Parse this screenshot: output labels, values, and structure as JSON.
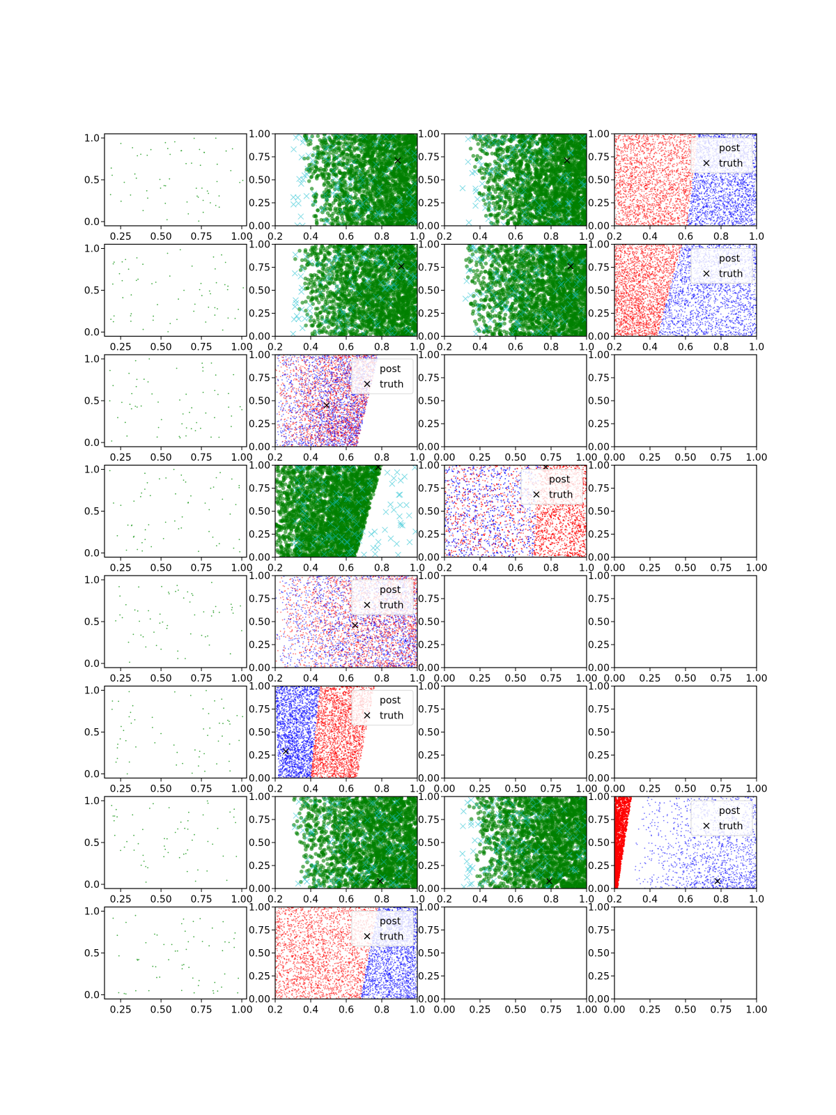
{
  "figure": {
    "rows": 8,
    "cols": 4
  },
  "colors": {
    "uniform": "#2ca02c",
    "samples": "#008000",
    "truth_samples": "#17becf",
    "post_a": "#ff0000",
    "post_b": "#0000ff",
    "truth_marker": "#000000"
  },
  "legend_labels": {
    "post": "post",
    "truth": "truth"
  },
  "chart_data": [
    {
      "row": 0,
      "col": 0,
      "type": "scatter",
      "kind": "uniform",
      "xticks": [
        "0.25",
        "0.50",
        "0.75",
        "1.00"
      ],
      "yticks": [
        "0.0",
        "0.5",
        "1.0"
      ],
      "xlim": [
        0.15,
        1.03
      ],
      "ylim": [
        -0.05,
        1.05
      ],
      "n_points": 60
    },
    {
      "row": 0,
      "col": 1,
      "type": "scatter",
      "kind": "samples",
      "xticks": [
        "0.2",
        "0.4",
        "0.6",
        "0.8",
        "1.0"
      ],
      "yticks": [
        "0.00",
        "0.25",
        "0.50",
        "0.75",
        "1.00"
      ],
      "xlim": [
        0.2,
        1.0
      ],
      "ylim": [
        0,
        1
      ],
      "truth": [
        0.89,
        0.71
      ],
      "n_points": 2600,
      "region": {
        "lo": 0.33,
        "hi": 1.0,
        "skew": 0.08
      }
    },
    {
      "row": 0,
      "col": 2,
      "type": "scatter",
      "kind": "samples",
      "xticks": [
        "0.2",
        "0.4",
        "0.6",
        "0.8",
        "1.0"
      ],
      "yticks": [
        "0.00",
        "0.25",
        "0.50",
        "0.75",
        "1.00"
      ],
      "xlim": [
        0.2,
        1.0
      ],
      "ylim": [
        0,
        1
      ],
      "truth": [
        0.89,
        0.71
      ],
      "n_points": 2600,
      "region": {
        "lo": 0.33,
        "hi": 1.0,
        "skew": 0.08
      }
    },
    {
      "row": 0,
      "col": 3,
      "type": "scatter",
      "kind": "post",
      "xticks": [
        "0.2",
        "0.4",
        "0.6",
        "0.8",
        "1.0"
      ],
      "yticks": [
        "0.00",
        "0.25",
        "0.50",
        "0.75",
        "1.00"
      ],
      "xlim": [
        0.2,
        1.0
      ],
      "ylim": [
        0,
        1
      ],
      "legend": true,
      "split": {
        "x0": 0.61,
        "x1": 0.67
      },
      "left": "post_a",
      "right": "post_b",
      "n_points": 4500
    },
    {
      "row": 1,
      "col": 0,
      "type": "scatter",
      "kind": "uniform",
      "xticks": [
        "0.25",
        "0.50",
        "0.75",
        "1.00"
      ],
      "yticks": [
        "0.0",
        "0.5",
        "1.0"
      ],
      "xlim": [
        0.15,
        1.03
      ],
      "ylim": [
        -0.05,
        1.05
      ],
      "n_points": 60
    },
    {
      "row": 1,
      "col": 1,
      "type": "scatter",
      "kind": "samples",
      "xticks": [
        "0.2",
        "0.4",
        "0.6",
        "0.8",
        "1.0"
      ],
      "yticks": [
        "0.00",
        "0.25",
        "0.50",
        "0.75",
        "1.00"
      ],
      "xlim": [
        0.2,
        1.0
      ],
      "ylim": [
        0,
        1
      ],
      "truth": [
        0.91,
        0.76
      ],
      "n_points": 2600,
      "region": {
        "lo": 0.3,
        "hi": 1.0,
        "skew": 0.05
      }
    },
    {
      "row": 1,
      "col": 2,
      "type": "scatter",
      "kind": "samples",
      "xticks": [
        "0.2",
        "0.4",
        "0.6",
        "0.8",
        "1.0"
      ],
      "yticks": [
        "0.00",
        "0.25",
        "0.50",
        "0.75",
        "1.00"
      ],
      "xlim": [
        0.2,
        1.0
      ],
      "ylim": [
        0,
        1
      ],
      "truth": [
        0.91,
        0.76
      ],
      "n_points": 2600,
      "region": {
        "lo": 0.3,
        "hi": 1.0,
        "skew": 0.05
      }
    },
    {
      "row": 1,
      "col": 3,
      "type": "scatter",
      "kind": "post",
      "xticks": [
        "0.2",
        "0.4",
        "0.6",
        "0.8",
        "1.0"
      ],
      "yticks": [
        "0.00",
        "0.25",
        "0.50",
        "0.75",
        "1.00"
      ],
      "xlim": [
        0.2,
        1.0
      ],
      "ylim": [
        0,
        1
      ],
      "legend": true,
      "split": {
        "x0": 0.44,
        "x1": 0.58
      },
      "left": "post_a",
      "right": "post_b",
      "n_points": 4500
    },
    {
      "row": 2,
      "col": 0,
      "type": "scatter",
      "kind": "uniform",
      "xticks": [
        "0.25",
        "0.50",
        "0.75",
        "1.00"
      ],
      "yticks": [
        "0.0",
        "0.5",
        "1.0"
      ],
      "xlim": [
        0.15,
        1.03
      ],
      "ylim": [
        -0.05,
        1.05
      ],
      "n_points": 60
    },
    {
      "row": 2,
      "col": 1,
      "type": "scatter",
      "kind": "mixed",
      "xticks": [
        "0.2",
        "0.4",
        "0.6",
        "0.8",
        "1.0"
      ],
      "yticks": [
        "0.00",
        "0.25",
        "0.50",
        "0.75",
        "1.00"
      ],
      "xlim": [
        0.2,
        1.0
      ],
      "ylim": [
        0,
        1
      ],
      "legend": true,
      "truth": [
        0.49,
        0.45
      ],
      "n_points": 4000,
      "region": {
        "lo": 0.2,
        "hi0": 0.66,
        "hi1": 0.78
      },
      "top": "post_b"
    },
    {
      "row": 2,
      "col": 2,
      "type": "empty",
      "xticks": [
        "0.00",
        "0.25",
        "0.50",
        "0.75",
        "1.00"
      ],
      "yticks": [
        "0.00",
        "0.25",
        "0.50",
        "0.75",
        "1.00"
      ],
      "xlim": [
        0,
        1
      ],
      "ylim": [
        0,
        1
      ]
    },
    {
      "row": 2,
      "col": 3,
      "type": "empty",
      "xticks": [
        "0.00",
        "0.25",
        "0.50",
        "0.75",
        "1.00"
      ],
      "yticks": [
        "0.00",
        "0.25",
        "0.50",
        "0.75",
        "1.00"
      ],
      "xlim": [
        0,
        1
      ],
      "ylim": [
        0,
        1
      ]
    },
    {
      "row": 3,
      "col": 0,
      "type": "scatter",
      "kind": "uniform",
      "xticks": [
        "0.25",
        "0.50",
        "0.75",
        "1.00"
      ],
      "yticks": [
        "0.0",
        "0.5",
        "1.0"
      ],
      "xlim": [
        0.15,
        1.03
      ],
      "ylim": [
        -0.05,
        1.05
      ],
      "n_points": 60
    },
    {
      "row": 3,
      "col": 1,
      "type": "scatter",
      "kind": "samples_bounded",
      "xticks": [
        "0.2",
        "0.4",
        "0.6",
        "0.8",
        "1.0"
      ],
      "yticks": [
        "0.00",
        "0.25",
        "0.50",
        "0.75",
        "1.00"
      ],
      "xlim": [
        0.2,
        1.0
      ],
      "ylim": [
        0,
        1
      ],
      "truth": [
        0.78,
        0.98
      ],
      "n_points": 2600,
      "region": {
        "lo": 0.2,
        "hi0": 0.65,
        "hi1": 0.8
      }
    },
    {
      "row": 3,
      "col": 2,
      "type": "scatter",
      "kind": "post",
      "xticks": [
        "0.2",
        "0.4",
        "0.6",
        "0.8",
        "1.0"
      ],
      "yticks": [
        "0.00",
        "0.25",
        "0.50",
        "0.75",
        "1.00"
      ],
      "xlim": [
        0.2,
        1.0
      ],
      "ylim": [
        0,
        1
      ],
      "legend": true,
      "truth": [
        0.77,
        0.98
      ],
      "split": {
        "x0": 0.7,
        "x1": 0.74
      },
      "left": "post_b",
      "right": "post_a",
      "n_points": 4500,
      "mixed_left": true
    },
    {
      "row": 3,
      "col": 3,
      "type": "empty",
      "xticks": [
        "0.00",
        "0.25",
        "0.50",
        "0.75",
        "1.00"
      ],
      "yticks": [
        "0.00",
        "0.25",
        "0.50",
        "0.75",
        "1.00"
      ],
      "xlim": [
        0,
        1
      ],
      "ylim": [
        0,
        1
      ]
    },
    {
      "row": 4,
      "col": 0,
      "type": "scatter",
      "kind": "uniform",
      "xticks": [
        "0.25",
        "0.50",
        "0.75",
        "1.00"
      ],
      "yticks": [
        "0.0",
        "0.5",
        "1.0"
      ],
      "xlim": [
        0.15,
        1.03
      ],
      "ylim": [
        -0.05,
        1.05
      ],
      "n_points": 60
    },
    {
      "row": 4,
      "col": 1,
      "type": "scatter",
      "kind": "mixed",
      "xticks": [
        "0.2",
        "0.4",
        "0.6",
        "0.8",
        "1.0"
      ],
      "yticks": [
        "0.00",
        "0.25",
        "0.50",
        "0.75",
        "1.00"
      ],
      "xlim": [
        0.2,
        1.0
      ],
      "ylim": [
        0,
        1
      ],
      "legend": true,
      "truth": [
        0.65,
        0.46
      ],
      "n_points": 4200,
      "region": {
        "lo": 0.2,
        "hi0": 1.0,
        "hi1": 1.0
      },
      "top": "post_a"
    },
    {
      "row": 4,
      "col": 2,
      "type": "empty",
      "xticks": [
        "0.00",
        "0.25",
        "0.50",
        "0.75",
        "1.00"
      ],
      "yticks": [
        "0.00",
        "0.25",
        "0.50",
        "0.75",
        "1.00"
      ],
      "xlim": [
        0,
        1
      ],
      "ylim": [
        0,
        1
      ]
    },
    {
      "row": 4,
      "col": 3,
      "type": "empty",
      "xticks": [
        "0.00",
        "0.25",
        "0.50",
        "0.75",
        "1.00"
      ],
      "yticks": [
        "0.00",
        "0.25",
        "0.50",
        "0.75",
        "1.00"
      ],
      "xlim": [
        0,
        1
      ],
      "ylim": [
        0,
        1
      ]
    },
    {
      "row": 5,
      "col": 0,
      "type": "scatter",
      "kind": "uniform",
      "xticks": [
        "0.25",
        "0.50",
        "0.75",
        "1.00"
      ],
      "yticks": [
        "0.0",
        "0.5",
        "1.0"
      ],
      "xlim": [
        0.15,
        1.03
      ],
      "ylim": [
        -0.05,
        1.05
      ],
      "n_points": 60
    },
    {
      "row": 5,
      "col": 1,
      "type": "scatter",
      "kind": "bands",
      "xticks": [
        "0.2",
        "0.4",
        "0.6",
        "0.8",
        "1.0"
      ],
      "yticks": [
        "0.00",
        "0.25",
        "0.50",
        "0.75",
        "1.00"
      ],
      "xlim": [
        0.2,
        1.0
      ],
      "ylim": [
        0,
        1
      ],
      "legend": true,
      "truth": [
        0.26,
        0.29
      ],
      "n_points": 4500
    },
    {
      "row": 5,
      "col": 2,
      "type": "empty",
      "xticks": [
        "0.00",
        "0.25",
        "0.50",
        "0.75",
        "1.00"
      ],
      "yticks": [
        "0.00",
        "0.25",
        "0.50",
        "0.75",
        "1.00"
      ],
      "xlim": [
        0,
        1
      ],
      "ylim": [
        0,
        1
      ]
    },
    {
      "row": 5,
      "col": 3,
      "type": "empty",
      "xticks": [
        "0.00",
        "0.25",
        "0.50",
        "0.75",
        "1.00"
      ],
      "yticks": [
        "0.00",
        "0.25",
        "0.50",
        "0.75",
        "1.00"
      ],
      "xlim": [
        0,
        1
      ],
      "ylim": [
        0,
        1
      ]
    },
    {
      "row": 6,
      "col": 0,
      "type": "scatter",
      "kind": "uniform",
      "xticks": [
        "0.25",
        "0.50",
        "0.75",
        "1.00"
      ],
      "yticks": [
        "0.0",
        "0.5",
        "1.0"
      ],
      "xlim": [
        0.15,
        1.03
      ],
      "ylim": [
        -0.05,
        1.05
      ],
      "n_points": 60
    },
    {
      "row": 6,
      "col": 1,
      "type": "scatter",
      "kind": "samples",
      "xticks": [
        "0.2",
        "0.4",
        "0.6",
        "0.8",
        "1.0"
      ],
      "yticks": [
        "0.00",
        "0.25",
        "0.50",
        "0.75",
        "1.00"
      ],
      "xlim": [
        0.2,
        1.0
      ],
      "ylim": [
        0,
        1
      ],
      "truth": [
        0.79,
        0.08
      ],
      "n_points": 2600,
      "region": {
        "lo": 0.28,
        "hi": 1.0,
        "skew": 0.06
      }
    },
    {
      "row": 6,
      "col": 2,
      "type": "scatter",
      "kind": "samples",
      "xticks": [
        "0.2",
        "0.4",
        "0.6",
        "0.8",
        "1.0"
      ],
      "yticks": [
        "0.00",
        "0.25",
        "0.50",
        "0.75",
        "1.00"
      ],
      "xlim": [
        0.2,
        1.0
      ],
      "ylim": [
        0,
        1
      ],
      "truth": [
        0.79,
        0.08
      ],
      "n_points": 2600,
      "region": {
        "lo": 0.33,
        "hi": 1.0,
        "skew": 0.06
      }
    },
    {
      "row": 6,
      "col": 3,
      "type": "scatter",
      "kind": "wedge",
      "xticks": [
        "0.2",
        "0.4",
        "0.6",
        "0.8",
        "1.0"
      ],
      "yticks": [
        "0.00",
        "0.25",
        "0.50",
        "0.75",
        "1.00"
      ],
      "xlim": [
        0.2,
        1.0
      ],
      "ylim": [
        0,
        1
      ],
      "legend": true,
      "truth": [
        0.78,
        0.08
      ],
      "n_points": 1600
    },
    {
      "row": 7,
      "col": 0,
      "type": "scatter",
      "kind": "uniform",
      "xticks": [
        "0.25",
        "0.50",
        "0.75",
        "1.00"
      ],
      "yticks": [
        "0.0",
        "0.5",
        "1.0"
      ],
      "xlim": [
        0.15,
        1.03
      ],
      "ylim": [
        -0.05,
        1.05
      ],
      "n_points": 60
    },
    {
      "row": 7,
      "col": 1,
      "type": "scatter",
      "kind": "post",
      "xticks": [
        "0.2",
        "0.4",
        "0.6",
        "0.8",
        "1.0"
      ],
      "yticks": [
        "0.00",
        "0.25",
        "0.50",
        "0.75",
        "1.00"
      ],
      "xlim": [
        0.2,
        1.0
      ],
      "ylim": [
        0,
        1
      ],
      "legend": true,
      "split": {
        "x0": 0.68,
        "x1": 0.78
      },
      "left": "post_a",
      "right": "post_b",
      "n_points": 4500
    },
    {
      "row": 7,
      "col": 2,
      "type": "empty",
      "xticks": [
        "0.00",
        "0.25",
        "0.50",
        "0.75",
        "1.00"
      ],
      "yticks": [
        "0.00",
        "0.25",
        "0.50",
        "0.75",
        "1.00"
      ],
      "xlim": [
        0,
        1
      ],
      "ylim": [
        0,
        1
      ]
    },
    {
      "row": 7,
      "col": 3,
      "type": "empty",
      "xticks": [
        "0.00",
        "0.25",
        "0.50",
        "0.75",
        "1.00"
      ],
      "yticks": [
        "0.00",
        "0.25",
        "0.50",
        "0.75",
        "1.00"
      ],
      "xlim": [
        0,
        1
      ],
      "ylim": [
        0,
        1
      ]
    }
  ]
}
